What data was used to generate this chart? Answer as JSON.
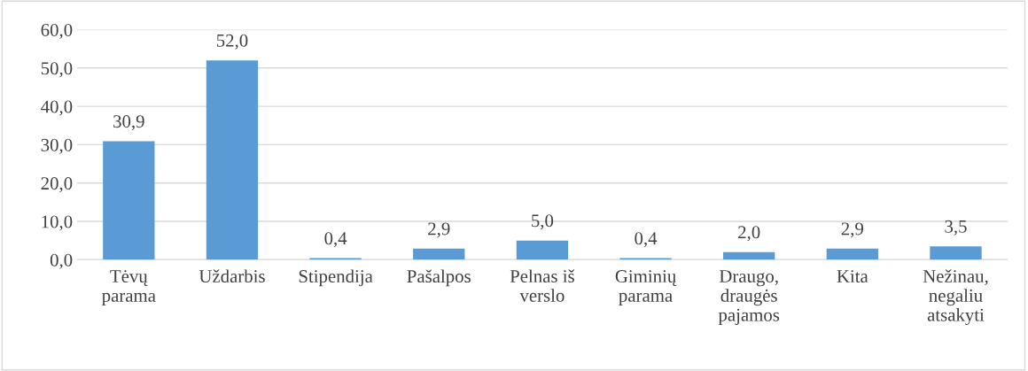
{
  "chart_data": {
    "type": "bar",
    "categories": [
      "Tėvų\nparama",
      "Uždarbis",
      "Stipendija",
      "Pašalpos",
      "Pelnas iš\nverslo",
      "Giminių\nparama",
      "Draugo,\ndraugės\npajamos",
      "Kita",
      "Nežinau,\nnegaliu\natsakyti"
    ],
    "values": [
      30.9,
      52.0,
      0.4,
      2.9,
      5.0,
      0.4,
      2.0,
      2.9,
      3.5
    ],
    "value_labels": [
      "30,9",
      "52,0",
      "0,4",
      "2,9",
      "5,0",
      "0,4",
      "2,0",
      "2,9",
      "3,5"
    ],
    "color": "#5b9bd5",
    "ylim": [
      0,
      60
    ],
    "yticks": [
      {
        "value": 0,
        "label": "0,0"
      },
      {
        "value": 10,
        "label": "10,0"
      },
      {
        "value": 20,
        "label": "20,0"
      },
      {
        "value": 30,
        "label": "30,0"
      },
      {
        "value": 40,
        "label": "40,0"
      },
      {
        "value": 50,
        "label": "50,0"
      },
      {
        "value": 60,
        "label": "60,0"
      }
    ],
    "grid": "y"
  }
}
